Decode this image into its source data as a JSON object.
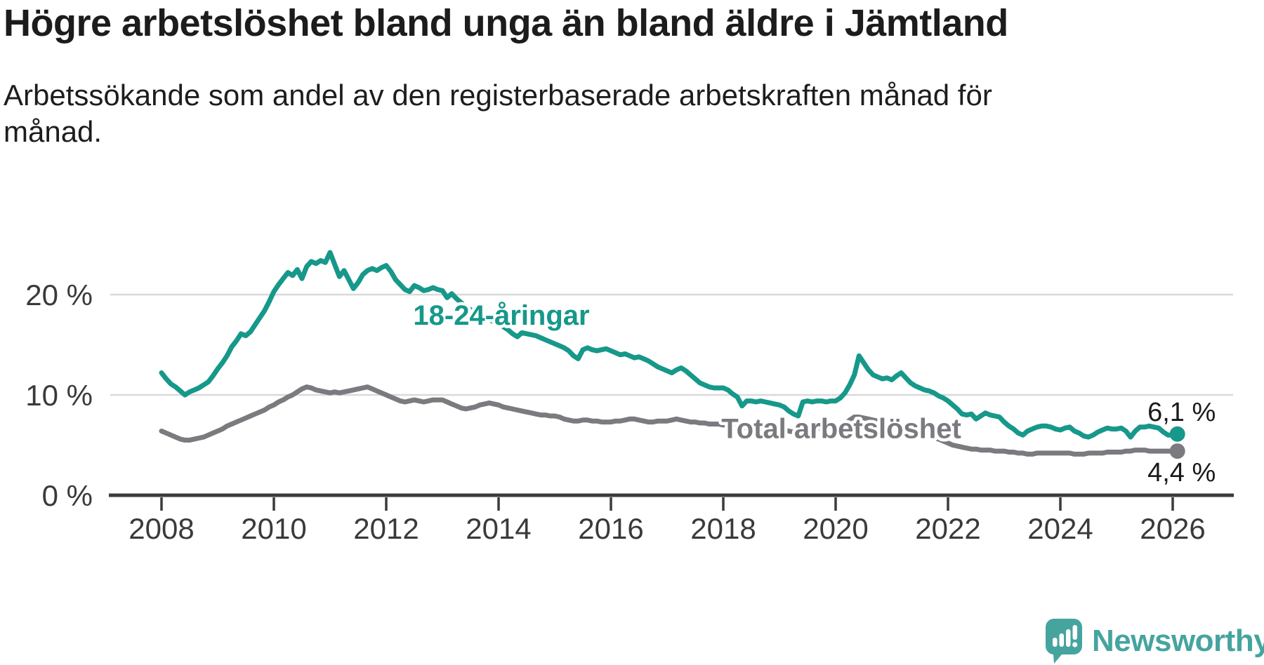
{
  "header": {
    "title": "Högre arbetslöshet bland unga än bland äldre i Jämtland",
    "subtitle": "Arbetssökande som andel av den registerbaserade arbetskraften månad för månad."
  },
  "chart_data": {
    "type": "line",
    "unit": "%",
    "start_year": 2008,
    "start_month": 1,
    "points_per_year": 12,
    "x_axis": {
      "tick_years": [
        2008,
        2010,
        2012,
        2014,
        2016,
        2018,
        2020,
        2022,
        2024,
        2026
      ],
      "tick_labels": [
        "2008",
        "2010",
        "2012",
        "2014",
        "2016",
        "2018",
        "2020",
        "2022",
        "2024",
        "2026"
      ]
    },
    "y_axis": {
      "ticks": [
        {
          "value": 0,
          "label": "0 %"
        },
        {
          "value": 10,
          "label": "10 %"
        },
        {
          "value": 20,
          "label": "20 %"
        }
      ],
      "gridline_values": [
        10,
        20
      ],
      "ylim": [
        0,
        26
      ]
    },
    "grid_color": "#d9d9d9",
    "axis_color": "#3b3b3b",
    "tick_label_color": "#3a3a3a",
    "value_label_color": "#1a1a1a",
    "series": [
      {
        "name": "18-24-åringar",
        "color": "#16988a",
        "end_value_label": "6,1 %",
        "label_anchor": {
          "year": 2014.05,
          "value": 17.0
        },
        "values": [
          12.2,
          11.6,
          11.1,
          10.8,
          10.4,
          10.0,
          10.3,
          10.5,
          10.7,
          11.0,
          11.3,
          11.9,
          12.6,
          13.2,
          13.9,
          14.8,
          15.4,
          16.1,
          15.9,
          16.3,
          17.0,
          17.7,
          18.4,
          19.3,
          20.3,
          21.0,
          21.6,
          22.2,
          21.9,
          22.5,
          21.6,
          22.8,
          23.3,
          23.1,
          23.4,
          23.2,
          24.2,
          23.0,
          21.8,
          22.4,
          21.5,
          20.6,
          21.2,
          22.0,
          22.4,
          22.6,
          22.4,
          22.7,
          22.9,
          22.3,
          21.5,
          21.0,
          20.5,
          20.3,
          20.9,
          20.7,
          20.4,
          20.5,
          20.7,
          20.5,
          20.4,
          19.7,
          20.1,
          19.6,
          19.2,
          18.8,
          18.5,
          18.3,
          18.0,
          17.8,
          17.5,
          17.3,
          17.1,
          16.8,
          16.5,
          16.1,
          15.8,
          16.2,
          16.1,
          16.0,
          15.9,
          15.7,
          15.5,
          15.3,
          15.1,
          14.9,
          14.7,
          14.4,
          13.9,
          13.6,
          14.5,
          14.7,
          14.5,
          14.4,
          14.5,
          14.6,
          14.4,
          14.2,
          14.0,
          14.1,
          13.9,
          13.7,
          13.8,
          13.6,
          13.4,
          13.1,
          12.8,
          12.6,
          12.4,
          12.2,
          12.5,
          12.7,
          12.4,
          12.0,
          11.6,
          11.2,
          11.0,
          10.8,
          10.7,
          10.7,
          10.7,
          10.5,
          10.1,
          9.8,
          8.9,
          9.4,
          9.4,
          9.3,
          9.4,
          9.3,
          9.2,
          9.1,
          9.0,
          8.8,
          8.4,
          8.1,
          7.9,
          9.3,
          9.4,
          9.3,
          9.4,
          9.4,
          9.3,
          9.4,
          9.4,
          9.7,
          10.2,
          11.0,
          12.0,
          13.9,
          13.2,
          12.5,
          12.0,
          11.8,
          11.6,
          11.7,
          11.5,
          11.9,
          12.2,
          11.7,
          11.2,
          10.9,
          10.7,
          10.5,
          10.4,
          10.2,
          9.9,
          9.7,
          9.4,
          9.0,
          8.6,
          8.1,
          8.0,
          8.1,
          7.6,
          7.9,
          8.2,
          8.0,
          7.9,
          7.8,
          7.3,
          6.9,
          6.6,
          6.2,
          6.0,
          6.4,
          6.6,
          6.8,
          6.9,
          6.9,
          6.8,
          6.6,
          6.5,
          6.7,
          6.8,
          6.4,
          6.2,
          5.9,
          5.8,
          6.0,
          6.3,
          6.5,
          6.7,
          6.6,
          6.6,
          6.7,
          6.4,
          5.8,
          6.4,
          6.8,
          6.8,
          6.9,
          6.8,
          6.7,
          6.3,
          6.0,
          6.0,
          6.1
        ]
      },
      {
        "name": "Total arbetslöshet",
        "color": "#7a7a7f",
        "end_value_label": "4,4 %",
        "label_anchor": {
          "year": 2020.1,
          "value": 5.7
        },
        "values": [
          6.4,
          6.2,
          6.0,
          5.8,
          5.6,
          5.5,
          5.5,
          5.6,
          5.7,
          5.8,
          6.0,
          6.2,
          6.4,
          6.6,
          6.9,
          7.1,
          7.3,
          7.5,
          7.7,
          7.9,
          8.1,
          8.3,
          8.5,
          8.8,
          9.0,
          9.3,
          9.5,
          9.8,
          10.0,
          10.3,
          10.6,
          10.8,
          10.7,
          10.5,
          10.4,
          10.3,
          10.2,
          10.3,
          10.2,
          10.3,
          10.4,
          10.5,
          10.6,
          10.7,
          10.8,
          10.6,
          10.4,
          10.2,
          10.0,
          9.8,
          9.6,
          9.4,
          9.3,
          9.4,
          9.5,
          9.4,
          9.3,
          9.4,
          9.5,
          9.5,
          9.5,
          9.3,
          9.1,
          8.9,
          8.7,
          8.6,
          8.7,
          8.8,
          9.0,
          9.1,
          9.2,
          9.1,
          9.0,
          8.8,
          8.7,
          8.6,
          8.5,
          8.4,
          8.3,
          8.2,
          8.1,
          8.0,
          8.0,
          7.9,
          7.9,
          7.8,
          7.6,
          7.5,
          7.4,
          7.4,
          7.5,
          7.5,
          7.4,
          7.4,
          7.3,
          7.3,
          7.3,
          7.4,
          7.4,
          7.5,
          7.6,
          7.6,
          7.5,
          7.4,
          7.3,
          7.3,
          7.4,
          7.4,
          7.4,
          7.5,
          7.6,
          7.5,
          7.4,
          7.3,
          7.3,
          7.2,
          7.2,
          7.1,
          7.1,
          7.1,
          7.0,
          7.0,
          6.9,
          6.8,
          6.8,
          6.7,
          6.7,
          6.8,
          6.8,
          6.7,
          6.7,
          6.6,
          6.6,
          6.5,
          6.4,
          6.3,
          6.5,
          6.7,
          6.8,
          6.8,
          6.7,
          6.7,
          6.8,
          6.8,
          6.8,
          6.9,
          7.1,
          7.5,
          7.8,
          7.8,
          7.7,
          7.6,
          7.5,
          7.4,
          7.4,
          7.3,
          7.3,
          7.2,
          7.0,
          6.9,
          6.7,
          6.5,
          6.3,
          6.1,
          5.9,
          5.7,
          5.6,
          5.4,
          5.2,
          5.0,
          4.9,
          4.8,
          4.7,
          4.6,
          4.6,
          4.5,
          4.5,
          4.5,
          4.4,
          4.4,
          4.4,
          4.3,
          4.3,
          4.2,
          4.2,
          4.1,
          4.1,
          4.2,
          4.2,
          4.2,
          4.2,
          4.2,
          4.2,
          4.2,
          4.2,
          4.1,
          4.1,
          4.1,
          4.2,
          4.2,
          4.2,
          4.2,
          4.3,
          4.3,
          4.3,
          4.3,
          4.4,
          4.4,
          4.5,
          4.5,
          4.5,
          4.4,
          4.4,
          4.4,
          4.4,
          4.4,
          4.4,
          4.4
        ]
      }
    ]
  },
  "branding": {
    "text": "Newsworthy",
    "color": "#46a49f"
  }
}
